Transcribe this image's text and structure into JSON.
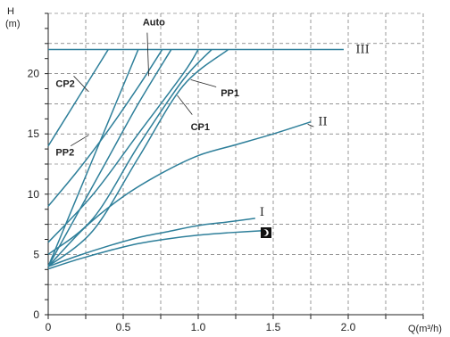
{
  "chart_data": {
    "type": "line",
    "title": "",
    "xlabel": "Q(m³/h)",
    "ylabel": "H",
    "ylabel_unit": "(m)",
    "xlim": [
      0,
      2.5
    ],
    "ylim": [
      0,
      25
    ],
    "x_ticks": [
      0,
      0.5,
      1.0,
      1.5,
      2.0
    ],
    "x_tick_labels": [
      "0",
      "0.5",
      "1.0",
      "1.5",
      "2.0"
    ],
    "y_ticks": [
      0,
      5,
      10,
      15,
      20
    ],
    "y_tick_labels": [
      "0",
      "5",
      "10",
      "15",
      "20"
    ],
    "grid": true,
    "line_color": "#2e7f9a",
    "series": [
      {
        "name": "III",
        "x": [
          0,
          0.4,
          0.6,
          0.8,
          1.0,
          1.2,
          1.6,
          1.97
        ],
        "y": [
          22,
          22,
          22,
          22,
          22,
          22,
          22,
          22
        ]
      },
      {
        "name": "II",
        "x": [
          0,
          0.25,
          0.5,
          0.75,
          1.0,
          1.25,
          1.5,
          1.75
        ],
        "y": [
          4,
          7.3,
          9.8,
          11.7,
          13.2,
          14.1,
          15.0,
          16.0
        ]
      },
      {
        "name": "I",
        "x": [
          0,
          0.2,
          0.4,
          0.6,
          0.8,
          1.0,
          1.2,
          1.38
        ],
        "y": [
          4,
          4.9,
          5.7,
          6.4,
          6.9,
          7.4,
          7.7,
          8.0
        ]
      },
      {
        "name": "",
        "x": [
          0,
          0.2,
          0.4,
          0.6,
          0.8,
          1.0,
          1.2,
          1.47
        ],
        "y": [
          3.8,
          4.6,
          5.3,
          5.9,
          6.3,
          6.6,
          6.8,
          7.0
        ]
      },
      {
        "name": "CP2",
        "x": [
          0,
          0.1,
          0.2,
          0.3,
          0.4
        ],
        "y": [
          14,
          16,
          18,
          20,
          22
        ]
      },
      {
        "name": "PP2",
        "x": [
          0,
          0.15,
          0.3,
          0.45,
          0.6
        ],
        "y": [
          4,
          8.5,
          13,
          17.5,
          22
        ]
      },
      {
        "name": "Auto",
        "x": [
          0,
          0.2,
          0.4,
          0.6,
          0.76
        ],
        "y": [
          9,
          12,
          15.3,
          18.9,
          22
        ]
      },
      {
        "name": "CP1",
        "x": [
          0,
          0.3,
          0.6,
          0.9,
          1.0
        ],
        "y": [
          6,
          10,
          15,
          20,
          22
        ]
      },
      {
        "name": "PP1",
        "x": [
          0,
          0.3,
          0.6,
          0.9,
          1.2
        ],
        "y": [
          4,
          7,
          13,
          19,
          22
        ]
      },
      {
        "name": "",
        "x": [
          0,
          0.2,
          0.4,
          0.6,
          0.82
        ],
        "y": [
          4,
          8.5,
          13,
          17.5,
          22
        ]
      },
      {
        "name": "",
        "x": [
          0,
          0.3,
          0.6,
          0.9,
          1.09
        ],
        "y": [
          5,
          8,
          14,
          19.5,
          22
        ]
      }
    ],
    "annotations": [
      {
        "text": "Auto",
        "x": 0.63,
        "y": 24.3
      },
      {
        "text": "CP2",
        "x": 0.05,
        "y": 19.2
      },
      {
        "text": "PP2",
        "x": 0.05,
        "y": 13.5
      },
      {
        "text": "CP1",
        "x": 0.95,
        "y": 15.6
      },
      {
        "text": "PP1",
        "x": 1.15,
        "y": 18.4
      },
      {
        "text": "III",
        "x": 2.05,
        "y": 22.0
      },
      {
        "text": "II",
        "x": 1.8,
        "y": 16.0
      },
      {
        "text": "I",
        "x": 1.41,
        "y": 8.5
      }
    ],
    "night_mode_icon": "moon-icon"
  }
}
